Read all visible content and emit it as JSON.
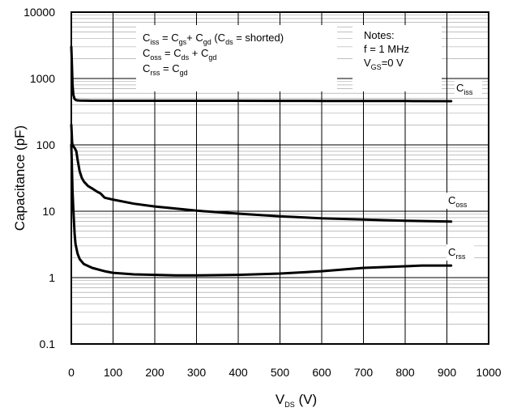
{
  "chart_data": {
    "type": "line",
    "title": "",
    "xlabel": {
      "main": "V",
      "sub": "DS",
      "unit": " (V)"
    },
    "ylabel": "Capacitance (pF)",
    "x_scale": "linear",
    "y_scale": "log",
    "xlim": [
      0,
      1000
    ],
    "ylim": [
      0.1,
      10000
    ],
    "x_ticks": [
      "0",
      "100",
      "200",
      "300",
      "400",
      "500",
      "600",
      "700",
      "800",
      "900",
      "1000"
    ],
    "y_ticks": [
      "0.1",
      "1",
      "10",
      "100",
      "1000",
      "10000"
    ],
    "grid": true,
    "formula_box": [
      {
        "parts": [
          [
            "C",
            ""
          ],
          [
            "iss",
            "s"
          ],
          [
            " = C",
            ""
          ],
          [
            "gs",
            "s"
          ],
          [
            "+ C",
            ""
          ],
          [
            "gd",
            "s"
          ],
          [
            " (C",
            ""
          ],
          [
            "ds",
            "s"
          ],
          [
            " = shorted)",
            ""
          ]
        ]
      },
      {
        "parts": [
          [
            "C",
            ""
          ],
          [
            "oss",
            "s"
          ],
          [
            " = C",
            ""
          ],
          [
            "ds",
            "s"
          ],
          [
            " + C",
            ""
          ],
          [
            "gd",
            "s"
          ]
        ]
      },
      {
        "parts": [
          [
            "C",
            ""
          ],
          [
            "rss",
            "s"
          ],
          [
            " = C",
            ""
          ],
          [
            "gd",
            "s"
          ]
        ]
      }
    ],
    "notes": [
      {
        "parts": [
          [
            "Notes:",
            ""
          ]
        ]
      },
      {
        "parts": [
          [
            "f = 1 MHz",
            ""
          ]
        ]
      },
      {
        "parts": [
          [
            "V",
            ""
          ],
          [
            "GS",
            "s"
          ],
          [
            "=0 V",
            ""
          ]
        ]
      }
    ],
    "series": [
      {
        "name": {
          "main": "C",
          "sub": "iss"
        },
        "x": [
          0,
          1,
          2,
          3,
          5,
          8,
          12,
          20,
          50,
          100,
          200,
          300,
          400,
          500,
          600,
          700,
          800,
          910
        ],
        "y": [
          3000,
          2000,
          1300,
          800,
          560,
          490,
          470,
          465,
          462,
          462,
          462,
          462,
          462,
          461,
          460,
          460,
          458,
          455
        ]
      },
      {
        "name": {
          "main": "C",
          "sub": "oss"
        },
        "x": [
          0,
          1,
          2,
          3,
          5,
          8,
          12,
          15,
          20,
          25,
          30,
          40,
          50,
          60,
          70,
          80,
          100,
          150,
          200,
          300,
          400,
          500,
          600,
          700,
          800,
          910
        ],
        "y": [
          200,
          150,
          110,
          100,
          95,
          90,
          80,
          60,
          40,
          32,
          28,
          24,
          22,
          20,
          18.5,
          16,
          15,
          13,
          11.8,
          10.2,
          9.2,
          8.4,
          7.8,
          7.5,
          7.2,
          7.0
        ]
      },
      {
        "name": {
          "main": "C",
          "sub": "rss"
        },
        "x": [
          0,
          1,
          2,
          3,
          5,
          8,
          10,
          15,
          20,
          30,
          50,
          80,
          100,
          150,
          200,
          250,
          300,
          400,
          500,
          600,
          700,
          800,
          840,
          910
        ],
        "y": [
          100,
          60,
          35,
          20,
          10,
          4.5,
          3.2,
          2.3,
          1.9,
          1.6,
          1.4,
          1.25,
          1.18,
          1.12,
          1.1,
          1.08,
          1.08,
          1.1,
          1.15,
          1.25,
          1.4,
          1.48,
          1.52,
          1.52
        ]
      }
    ]
  }
}
